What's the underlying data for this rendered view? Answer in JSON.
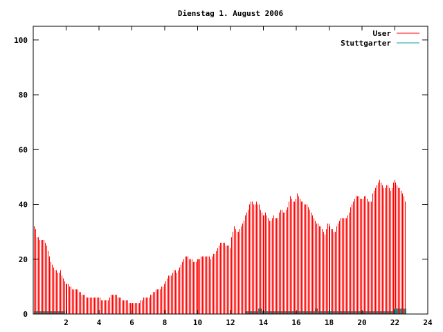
{
  "chart_data": {
    "type": "bar",
    "title": "Dienstag 1. August 2006",
    "xlabel": "",
    "ylabel": "",
    "xlim": [
      0,
      24
    ],
    "ylim": [
      0,
      105
    ],
    "x_ticks": [
      2,
      4,
      6,
      8,
      10,
      12,
      14,
      16,
      18,
      20,
      22,
      24
    ],
    "y_ticks": [
      0,
      20,
      40,
      60,
      80,
      100
    ],
    "legend_position": "top-right",
    "grid": false,
    "interval_hours": 0.0833333,
    "series": [
      {
        "name": "User",
        "color": "#ff0000",
        "values": [
          32,
          31,
          28,
          28,
          27,
          27,
          27,
          27,
          26,
          25,
          23,
          21,
          19,
          18,
          17,
          16,
          16,
          15,
          15,
          16,
          14,
          13,
          12,
          11,
          11,
          11,
          10,
          10,
          9,
          9,
          9,
          9,
          9,
          8,
          8,
          7,
          7,
          7,
          6,
          6,
          6,
          6,
          6,
          6,
          6,
          6,
          6,
          6,
          6,
          5,
          5,
          5,
          5,
          5,
          5,
          6,
          7,
          7,
          7,
          7,
          7,
          6,
          6,
          6,
          5,
          5,
          5,
          5,
          5,
          4,
          4,
          4,
          4,
          4,
          4,
          4,
          4,
          4,
          5,
          5,
          6,
          6,
          6,
          6,
          6,
          7,
          7,
          8,
          8,
          9,
          9,
          9,
          9,
          10,
          10,
          11,
          12,
          13,
          14,
          14,
          14,
          15,
          16,
          16,
          15,
          16,
          17,
          18,
          19,
          20,
          21,
          21,
          21,
          20,
          20,
          20,
          19,
          19,
          19,
          20,
          20,
          20,
          21,
          21,
          21,
          21,
          21,
          21,
          21,
          20,
          21,
          22,
          22,
          23,
          24,
          25,
          26,
          26,
          26,
          26,
          25,
          25,
          25,
          24,
          28,
          30,
          32,
          31,
          30,
          30,
          31,
          32,
          33,
          34,
          36,
          37,
          38,
          40,
          41,
          41,
          40,
          40,
          41,
          40,
          40,
          38,
          37,
          36,
          36,
          37,
          36,
          35,
          34,
          34,
          35,
          36,
          35,
          35,
          35,
          37,
          38,
          38,
          37,
          37,
          38,
          39,
          41,
          43,
          42,
          41,
          41,
          42,
          44,
          43,
          42,
          41,
          41,
          40,
          40,
          40,
          39,
          38,
          37,
          36,
          35,
          34,
          33,
          33,
          32,
          32,
          31,
          30,
          29,
          31,
          33,
          33,
          32,
          31,
          31,
          30,
          30,
          32,
          33,
          34,
          35,
          35,
          35,
          35,
          35,
          36,
          37,
          39,
          40,
          41,
          42,
          43,
          43,
          43,
          42,
          42,
          42,
          43,
          43,
          42,
          41,
          41,
          41,
          44,
          45,
          46,
          47,
          48,
          49,
          48,
          47,
          46,
          46,
          47,
          47,
          46,
          45,
          46,
          48,
          49,
          48,
          47,
          46,
          46,
          45,
          44,
          43,
          41
        ]
      },
      {
        "name": "Stuttgarter",
        "color": "#00a0a0",
        "values": [
          1,
          1,
          1,
          1,
          1,
          1,
          1,
          1,
          1,
          1,
          1,
          1,
          1,
          1,
          1,
          1,
          1,
          1,
          1,
          1,
          1,
          1,
          0,
          0,
          0,
          0,
          0,
          0,
          0,
          0,
          0,
          0,
          0,
          0,
          0,
          0,
          0,
          0,
          0,
          0,
          0,
          0,
          0,
          0,
          0,
          0,
          0,
          0,
          0,
          0,
          0,
          0,
          0,
          0,
          0,
          0,
          0,
          0,
          0,
          0,
          0,
          0,
          0,
          0,
          0,
          0,
          0,
          0,
          0,
          0,
          0,
          0,
          0,
          0,
          0,
          0,
          0,
          0,
          0,
          0,
          0,
          0,
          0,
          0,
          0,
          0,
          0,
          0,
          0,
          0,
          0,
          0,
          0,
          0,
          0,
          0,
          0,
          0,
          0,
          0,
          0,
          0,
          0,
          0,
          0,
          0,
          0,
          0,
          0,
          0,
          0,
          0,
          0,
          0,
          0,
          0,
          0,
          0,
          0,
          0,
          0,
          0,
          0,
          0,
          0,
          0,
          0,
          0,
          0,
          0,
          0,
          0,
          0,
          0,
          0,
          0,
          0,
          0,
          0,
          0,
          0,
          0,
          0,
          0,
          0,
          0,
          0,
          0,
          0,
          0,
          0,
          0,
          0,
          0,
          1,
          1,
          1,
          1,
          1,
          1,
          1,
          1,
          1,
          2,
          2,
          2,
          1,
          1,
          1,
          1,
          1,
          1,
          1,
          1,
          1,
          1,
          1,
          1,
          1,
          1,
          1,
          1,
          1,
          1,
          1,
          1,
          1,
          1,
          1,
          1,
          1,
          1,
          1,
          1,
          1,
          1,
          1,
          1,
          1,
          1,
          1,
          1,
          1,
          1,
          1,
          2,
          2,
          1,
          1,
          1,
          1,
          1,
          1,
          1,
          1,
          1,
          1,
          1,
          1,
          1,
          1,
          1,
          1,
          1,
          1,
          1,
          1,
          1,
          1,
          1,
          1,
          1,
          1,
          1,
          1,
          1,
          1,
          1,
          1,
          1,
          1,
          1,
          1,
          1,
          1,
          1,
          1,
          1,
          1,
          1,
          1,
          1,
          1,
          1,
          1,
          1,
          1,
          1,
          1,
          1,
          1,
          1,
          2,
          2,
          2,
          2,
          2,
          2,
          2,
          2,
          2,
          2
        ]
      }
    ]
  }
}
